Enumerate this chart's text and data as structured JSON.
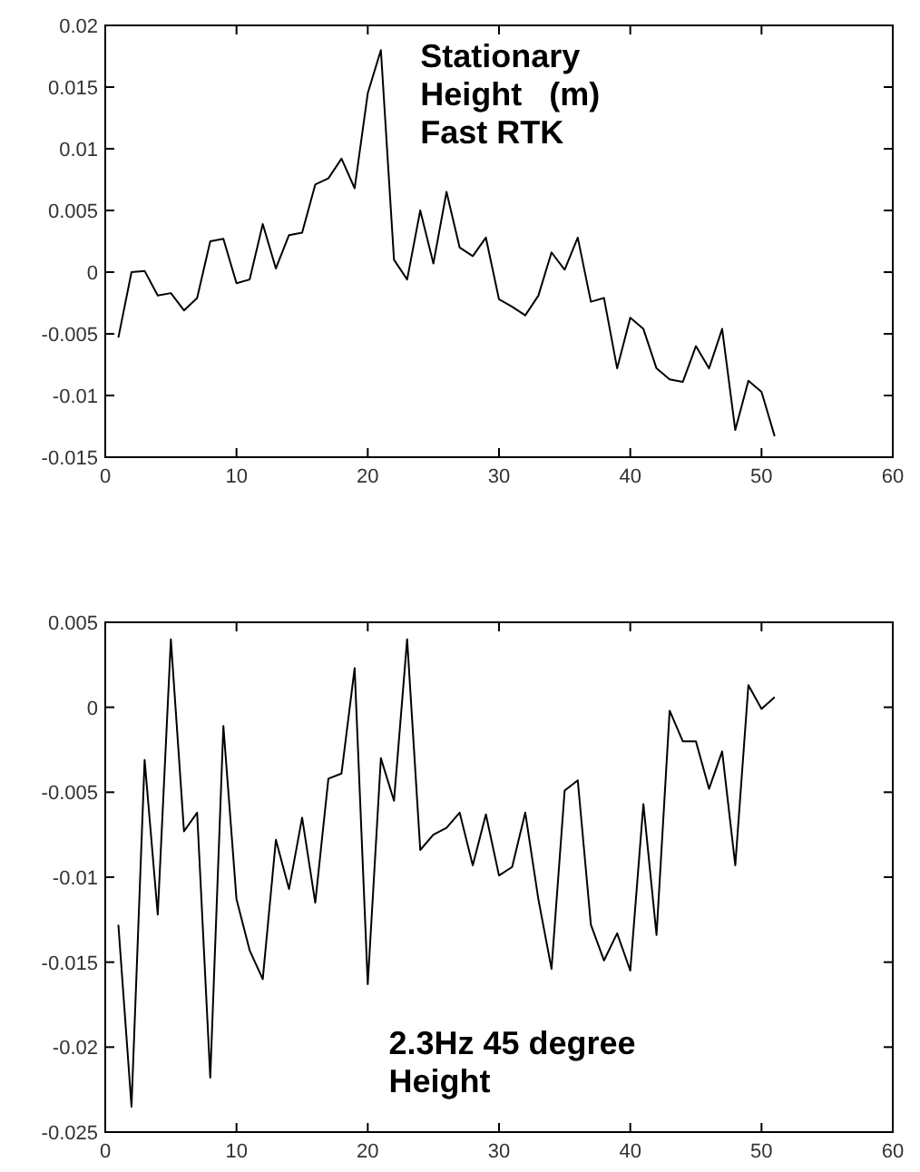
{
  "chart_data": [
    {
      "type": "line",
      "annotations": [
        "Stationary\nHeight   (m)\nFast RTK"
      ],
      "xlim": [
        0,
        60
      ],
      "xticks": [
        0,
        10,
        20,
        30,
        40,
        50,
        60
      ],
      "ylim": [
        -0.015,
        0.02
      ],
      "yticks": [
        -0.015,
        -0.01,
        -0.005,
        0,
        0.005,
        0.01,
        0.015,
        0.02
      ],
      "x": [
        1,
        2,
        3,
        4,
        5,
        6,
        7,
        8,
        9,
        10,
        11,
        12,
        13,
        14,
        15,
        16,
        17,
        18,
        19,
        20,
        21,
        22,
        23,
        24,
        25,
        26,
        27,
        28,
        29,
        30,
        31,
        32,
        33,
        34,
        35,
        36,
        37,
        38,
        39,
        40,
        41,
        42,
        43,
        44,
        45,
        46,
        47,
        48,
        49,
        50,
        51
      ],
      "series": [
        {
          "color": "#000000",
          "values": [
            -0.0053,
            0,
            0.0001,
            -0.0019,
            -0.0017,
            -0.0031,
            -0.0021,
            0.0025,
            0.0027,
            -0.0009,
            -0.0006,
            0.0039,
            0.0003,
            0.003,
            0.0032,
            0.0071,
            0.0076,
            0.0092,
            0.0068,
            0.0145,
            0.018,
            0.001,
            -0.0006,
            0.005,
            0.0007,
            0.0065,
            0.002,
            0.0013,
            0.0028,
            -0.0022,
            -0.0028,
            -0.0035,
            -0.0019,
            0.0016,
            0.0002,
            0.0028,
            -0.0024,
            -0.0021,
            -0.0078,
            -0.0037,
            -0.0046,
            -0.0078,
            -0.0087,
            -0.0089,
            -0.006,
            -0.0078,
            -0.0046,
            -0.0128,
            -0.0088,
            -0.0097,
            -0.0133
          ]
        }
      ]
    },
    {
      "type": "line",
      "annotations": [
        "2.3Hz 45 degree\nHeight"
      ],
      "xlim": [
        0,
        60
      ],
      "xticks": [
        0,
        10,
        20,
        30,
        40,
        50,
        60
      ],
      "ylim": [
        -0.025,
        0.005
      ],
      "yticks": [
        -0.025,
        -0.02,
        -0.015,
        -0.01,
        -0.005,
        0,
        0.005
      ],
      "x": [
        1,
        2,
        3,
        4,
        5,
        6,
        7,
        8,
        9,
        10,
        11,
        12,
        13,
        14,
        15,
        16,
        17,
        18,
        19,
        20,
        21,
        22,
        23,
        24,
        25,
        26,
        27,
        28,
        29,
        30,
        31,
        32,
        33,
        34,
        35,
        36,
        37,
        38,
        39,
        40,
        41,
        42,
        43,
        44,
        45,
        46,
        47,
        48,
        49,
        50,
        51
      ],
      "series": [
        {
          "color": "#000000",
          "values": [
            -0.0128,
            -0.0235,
            -0.0031,
            -0.0122,
            0.004,
            -0.0073,
            -0.0062,
            -0.0218,
            -0.0011,
            -0.0113,
            -0.0143,
            -0.016,
            -0.0078,
            -0.0107,
            -0.0065,
            -0.0115,
            -0.0042,
            -0.0039,
            0.0023,
            -0.0163,
            -0.003,
            -0.0055,
            0.004,
            -0.0084,
            -0.0075,
            -0.0071,
            -0.0062,
            -0.0093,
            -0.0063,
            -0.0099,
            -0.0094,
            -0.0062,
            -0.0113,
            -0.0154,
            -0.0049,
            -0.0043,
            -0.0128,
            -0.0149,
            -0.0133,
            -0.0155,
            -0.0057,
            -0.0134,
            -0.0002,
            -0.002,
            -0.002,
            -0.0048,
            -0.0026,
            -0.0093,
            0.0013,
            -0.0001,
            0.0006
          ]
        }
      ]
    }
  ]
}
